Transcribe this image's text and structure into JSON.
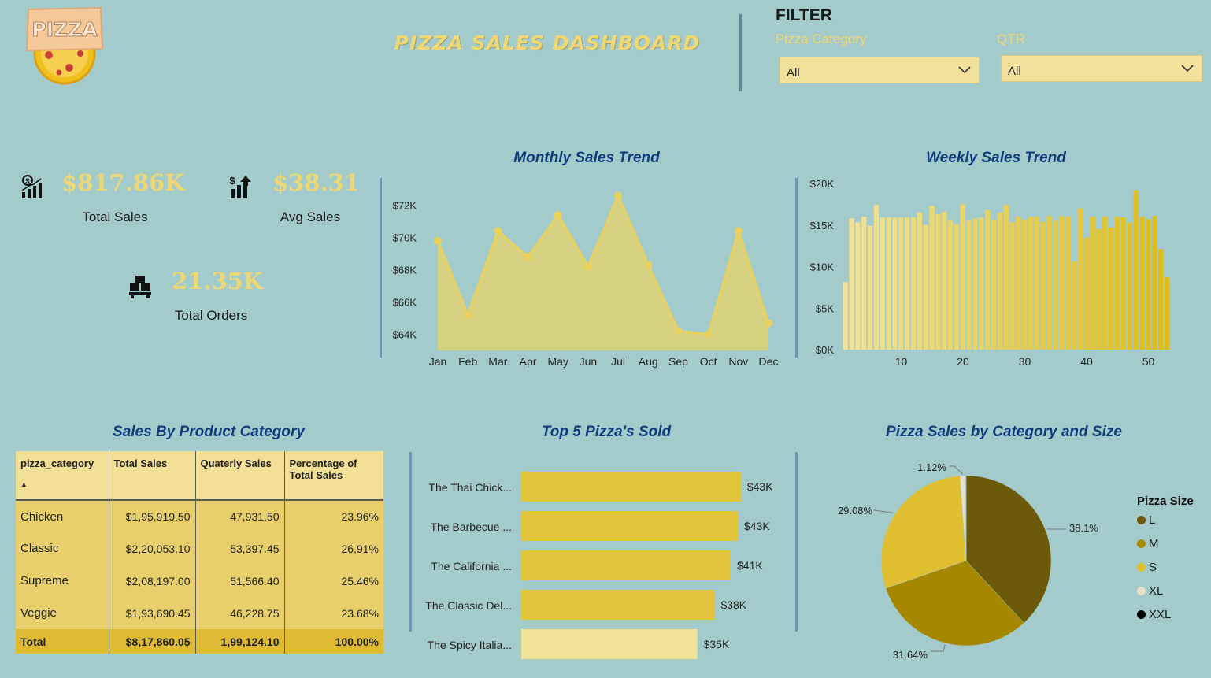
{
  "header": {
    "logo_text": "PIZZA",
    "title": "PIZZA SALES DASHBOARD"
  },
  "filters": {
    "heading": "FILTER",
    "category": {
      "label": "Pizza Category",
      "value": "All"
    },
    "quarter": {
      "label": "QTR",
      "value": "All"
    }
  },
  "kpis": {
    "total_sales": {
      "value": "$817.86K",
      "label": "Total Sales",
      "icon": "sales-growth-icon"
    },
    "avg_sales": {
      "value": "$38.31",
      "label": "Avg Sales",
      "icon": "dollar-bars-icon"
    },
    "total_orders": {
      "value": "21.35K",
      "label": "Total Orders",
      "icon": "delivery-boxes-icon"
    }
  },
  "colors": {
    "background": "#a4cbcb",
    "gold": "#efd873",
    "title_blue": "#0f3b7a",
    "area_fill": "#d9d27d",
    "bar_light": "#f1e398",
    "bar_dark": "#e0bc10",
    "size_L": "#6b5a0a",
    "size_M": "#a58800",
    "size_S": "#e0c030",
    "size_XL": "#e6e0cc",
    "size_XXL": "#000000"
  },
  "chart_data": [
    {
      "id": "monthly",
      "type": "area",
      "title": "Monthly Sales Trend",
      "categories": [
        "Jan",
        "Feb",
        "Mar",
        "Apr",
        "May",
        "Jun",
        "Jul",
        "Aug",
        "Sep",
        "Oct",
        "Nov",
        "Dec"
      ],
      "values": [
        69800,
        65200,
        70400,
        68800,
        71400,
        68200,
        72600,
        68300,
        64200,
        64000,
        70400,
        64700
      ],
      "ylim": [
        63000,
        73500
      ],
      "yticks": [
        64000,
        66000,
        68000,
        70000,
        72000
      ],
      "ytick_labels": [
        "$64K",
        "$66K",
        "$68K",
        "$70K",
        "$72K"
      ]
    },
    {
      "id": "weekly",
      "type": "bar",
      "title": "Weekly Sales Trend",
      "x": [
        1,
        2,
        3,
        4,
        5,
        6,
        7,
        8,
        9,
        10,
        11,
        12,
        13,
        14,
        15,
        16,
        17,
        18,
        19,
        20,
        21,
        22,
        23,
        24,
        25,
        26,
        27,
        28,
        29,
        30,
        31,
        32,
        33,
        34,
        35,
        36,
        37,
        38,
        39,
        40,
        41,
        42,
        43,
        44,
        45,
        46,
        47,
        48,
        49,
        50,
        51,
        52,
        53
      ],
      "values": [
        8100,
        15800,
        15300,
        16000,
        14900,
        17400,
        15900,
        15900,
        15900,
        15900,
        15900,
        15900,
        16500,
        15000,
        17300,
        16300,
        16600,
        15500,
        15100,
        17500,
        15500,
        15800,
        15900,
        16800,
        15600,
        16500,
        17400,
        15300,
        16000,
        15600,
        16000,
        16000,
        15400,
        16100,
        15500,
        16100,
        16000,
        10600,
        17000,
        13500,
        16000,
        14500,
        16000,
        14700,
        16000,
        15900,
        15300,
        19200,
        16000,
        15700,
        16100,
        12100,
        8700
      ],
      "ylim": [
        0,
        20000
      ],
      "yticks": [
        0,
        5000,
        10000,
        15000,
        20000
      ],
      "ytick_labels": [
        "$0K",
        "$5K",
        "$10K",
        "$15K",
        "$20K"
      ],
      "xticks": [
        10,
        20,
        30,
        40,
        50
      ]
    },
    {
      "id": "top5",
      "type": "bar",
      "orientation": "horizontal",
      "title": "Top 5 Pizza's Sold",
      "categories": [
        "The Thai Chick...",
        "The Barbecue ...",
        "The California ...",
        "The Classic Del...",
        "The Spicy Italia..."
      ],
      "values": [
        43400,
        42800,
        41400,
        38200,
        34800
      ],
      "value_labels": [
        "$43K",
        "$43K",
        "$41K",
        "$38K",
        "$35K"
      ],
      "xlim": [
        0,
        52000
      ]
    },
    {
      "id": "size-pie",
      "type": "pie",
      "title": "Pizza Sales by Category and Size",
      "legend_title": "Pizza Size",
      "legend_position": "right",
      "slices": [
        {
          "name": "L",
          "value": 38.1,
          "label": "38.1%"
        },
        {
          "name": "M",
          "value": 31.64,
          "label": "31.64%"
        },
        {
          "name": "S",
          "value": 29.08,
          "label": "29.08%"
        },
        {
          "name": "XL",
          "value": 1.12,
          "label": "1.12%"
        },
        {
          "name": "XXL",
          "value": 0.06,
          "label": ""
        }
      ]
    }
  ],
  "table": {
    "title": "Sales By Product Category",
    "columns": [
      "pizza_category",
      "Total Sales",
      "Quaterly Sales",
      "Percentage of Total Sales"
    ],
    "rows": [
      [
        "Chicken",
        "$1,95,919.50",
        "47,931.50",
        "23.96%"
      ],
      [
        "Classic",
        "$2,20,053.10",
        "53,397.45",
        "26.91%"
      ],
      [
        "Supreme",
        "$2,08,197.00",
        "51,566.40",
        "25.46%"
      ],
      [
        "Veggie",
        "$1,93,690.45",
        "46,228.75",
        "23.68%"
      ]
    ],
    "total": [
      "Total",
      "$8,17,860.05",
      "1,99,124.10",
      "100.00%"
    ]
  }
}
